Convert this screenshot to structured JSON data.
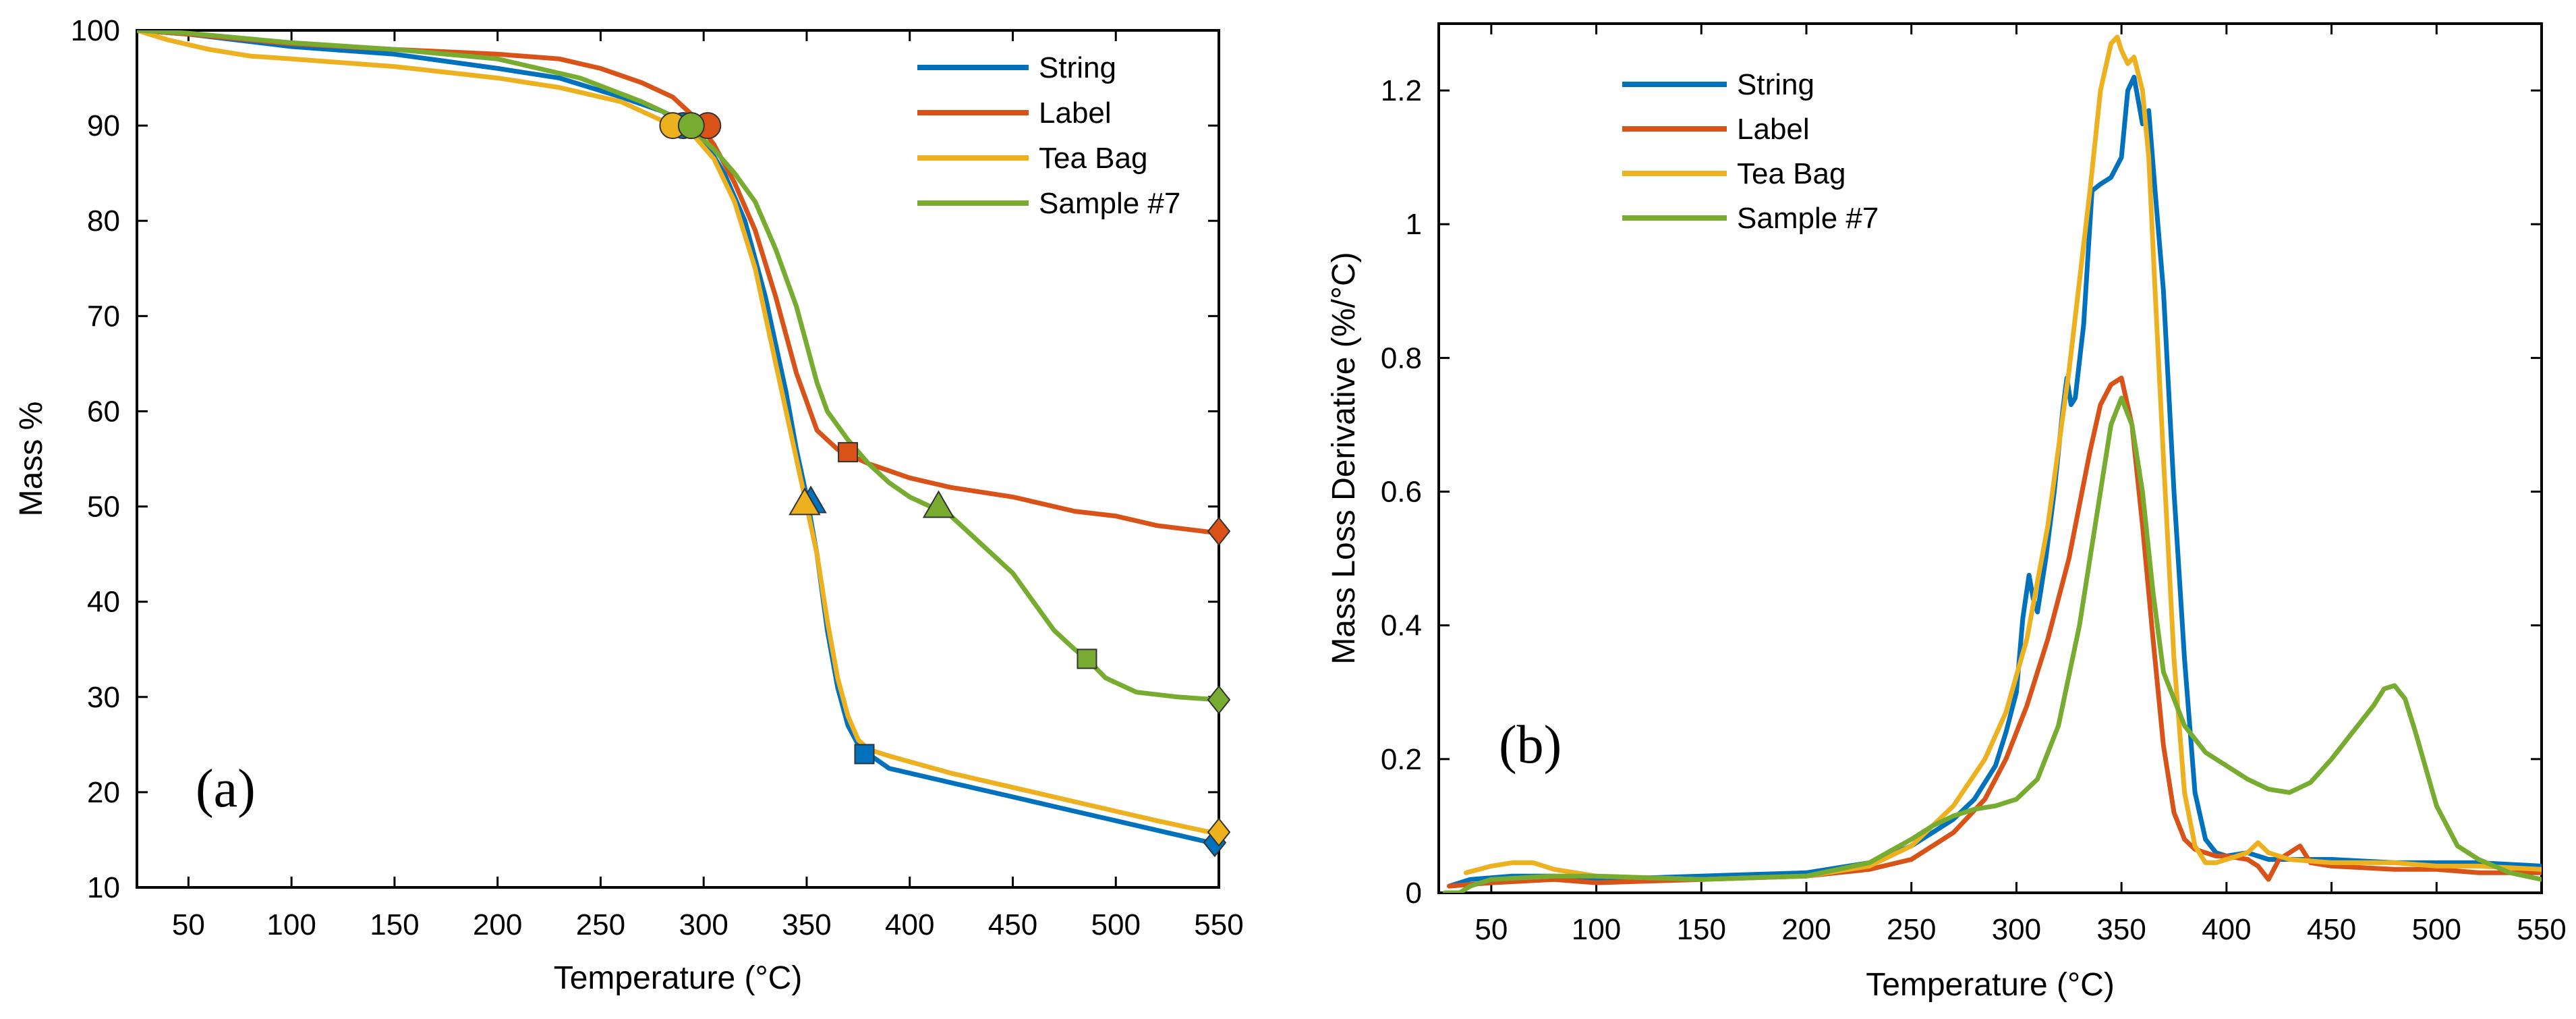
{
  "chart_data": [
    {
      "id": "a",
      "type": "line",
      "panel_label": "(a)",
      "xlabel": "Temperature (°C)",
      "ylabel": "Mass %",
      "xlim": [
        25,
        550
      ],
      "ylim": [
        10,
        100
      ],
      "xticks": [
        50,
        100,
        150,
        200,
        250,
        300,
        350,
        400,
        450,
        500,
        550
      ],
      "yticks": [
        10,
        20,
        30,
        40,
        50,
        60,
        70,
        80,
        90,
        100
      ],
      "legend_position": "top-right",
      "series": [
        {
          "name": "String",
          "color": "#0072BD",
          "x": [
            25,
            50,
            100,
            150,
            200,
            230,
            260,
            280,
            290,
            300,
            310,
            320,
            330,
            340,
            345,
            350,
            355,
            360,
            365,
            370,
            375,
            380,
            390,
            400,
            420,
            450,
            480,
            500,
            520,
            550
          ],
          "y": [
            100,
            99.6,
            98.3,
            97.5,
            96,
            95,
            93,
            91.5,
            90,
            88.5,
            85,
            80,
            72,
            62,
            56,
            51,
            45,
            37,
            31,
            27,
            25,
            24,
            22.5,
            22,
            21,
            19.5,
            18,
            17,
            16,
            14.5
          ],
          "markers": [
            {
              "shape": "circle",
              "x": 290,
              "y": 90
            },
            {
              "shape": "triangle",
              "x": 352,
              "y": 50.5
            },
            {
              "shape": "square",
              "x": 378,
              "y": 24
            },
            {
              "shape": "diamond",
              "x": 548,
              "y": 14.7
            }
          ]
        },
        {
          "name": "Label",
          "color": "#D95319",
          "x": [
            25,
            50,
            100,
            150,
            200,
            230,
            250,
            270,
            285,
            295,
            305,
            315,
            325,
            335,
            345,
            355,
            365,
            370,
            380,
            400,
            420,
            450,
            480,
            500,
            520,
            550
          ],
          "y": [
            100,
            99.6,
            98.6,
            98,
            97.5,
            97,
            96,
            94.5,
            93,
            91,
            88,
            84,
            79,
            72,
            64,
            58,
            56,
            55.5,
            54.5,
            53,
            52,
            51,
            49.5,
            49,
            48,
            47.2
          ],
          "markers": [
            {
              "shape": "circle",
              "x": 302,
              "y": 90
            },
            {
              "shape": "square",
              "x": 370,
              "y": 55.7
            },
            {
              "shape": "diamond",
              "x": 550,
              "y": 47.4
            }
          ]
        },
        {
          "name": "Tea Bag",
          "color": "#EDB120",
          "x": [
            25,
            40,
            60,
            80,
            100,
            150,
            200,
            230,
            260,
            275,
            285,
            295,
            305,
            315,
            325,
            335,
            345,
            350,
            355,
            360,
            365,
            370,
            375,
            380,
            390,
            400,
            420,
            450,
            480,
            500,
            520,
            550
          ],
          "y": [
            100,
            99,
            98,
            97.3,
            97,
            96.2,
            95,
            94,
            92.5,
            91,
            90,
            89,
            86.5,
            82,
            75,
            65,
            55,
            50,
            45,
            38,
            32,
            28,
            25.5,
            24.5,
            23.8,
            23.2,
            22,
            20.5,
            19,
            18,
            17,
            15.6
          ],
          "markers": [
            {
              "shape": "circle",
              "x": 285,
              "y": 90
            },
            {
              "shape": "triangle",
              "x": 349,
              "y": 50.3
            },
            {
              "shape": "diamond",
              "x": 550,
              "y": 15.8
            }
          ]
        },
        {
          "name": "Sample #7",
          "color": "#77AC30",
          "x": [
            25,
            50,
            100,
            150,
            200,
            240,
            270,
            285,
            295,
            305,
            315,
            325,
            335,
            345,
            350,
            355,
            360,
            370,
            380,
            390,
            400,
            410,
            420,
            435,
            450,
            460,
            470,
            480,
            486,
            495,
            510,
            530,
            550
          ],
          "y": [
            100,
            99.7,
            98.7,
            98,
            97,
            95,
            92.5,
            91,
            89.5,
            87.5,
            85,
            82,
            77,
            71,
            67,
            63,
            60,
            57,
            54.5,
            52.5,
            51,
            50,
            49,
            46,
            43,
            40,
            37,
            35,
            34,
            32,
            30.5,
            30,
            29.7
          ],
          "markers": [
            {
              "shape": "circle",
              "x": 294,
              "y": 90
            },
            {
              "shape": "triangle",
              "x": 414,
              "y": 50
            },
            {
              "shape": "square",
              "x": 486,
              "y": 34
            },
            {
              "shape": "diamond",
              "x": 550,
              "y": 29.7
            }
          ]
        }
      ]
    },
    {
      "id": "b",
      "type": "line",
      "panel_label": "(b)",
      "xlabel": "Temperature (°C)",
      "ylabel": "Mass Loss Derivative (%/°C)",
      "xlim": [
        25,
        550
      ],
      "ylim": [
        0,
        1.3
      ],
      "xticks": [
        50,
        100,
        150,
        200,
        250,
        300,
        350,
        400,
        450,
        500,
        550
      ],
      "yticks": [
        0,
        0.2,
        0.4,
        0.6,
        0.8,
        1,
        1.2
      ],
      "ytick_labels": [
        "0",
        "0.2",
        "0.4",
        "0.6",
        "0.8",
        "1",
        "1.2"
      ],
      "legend_position": "top-left",
      "series": [
        {
          "name": "String",
          "color": "#0072BD",
          "x": [
            30,
            40,
            60,
            80,
            100,
            150,
            200,
            230,
            250,
            270,
            280,
            290,
            295,
            300,
            303,
            306,
            308,
            310,
            314,
            318,
            322,
            324,
            326,
            328,
            332,
            336,
            340,
            345,
            350,
            353,
            356,
            360,
            363,
            366,
            370,
            375,
            380,
            385,
            390,
            395,
            400,
            410,
            420,
            430,
            450,
            480,
            500,
            520,
            550
          ],
          "y": [
            0.01,
            0.02,
            0.025,
            0.025,
            0.02,
            0.025,
            0.03,
            0.045,
            0.07,
            0.11,
            0.14,
            0.19,
            0.24,
            0.3,
            0.41,
            0.475,
            0.44,
            0.42,
            0.5,
            0.6,
            0.72,
            0.77,
            0.73,
            0.74,
            0.85,
            1.05,
            1.06,
            1.07,
            1.1,
            1.2,
            1.22,
            1.15,
            1.17,
            1.05,
            0.9,
            0.6,
            0.35,
            0.15,
            0.08,
            0.06,
            0.055,
            0.06,
            0.05,
            0.05,
            0.05,
            0.045,
            0.045,
            0.045,
            0.04
          ]
        },
        {
          "name": "Label",
          "color": "#D95319",
          "x": [
            30,
            50,
            80,
            100,
            150,
            200,
            230,
            250,
            270,
            285,
            295,
            305,
            315,
            325,
            335,
            340,
            345,
            350,
            355,
            360,
            365,
            370,
            375,
            380,
            385,
            390,
            395,
            400,
            410,
            415,
            420,
            425,
            430,
            435,
            440,
            450,
            480,
            500,
            520,
            550
          ],
          "y": [
            0.01,
            0.015,
            0.02,
            0.015,
            0.02,
            0.025,
            0.035,
            0.05,
            0.09,
            0.14,
            0.2,
            0.28,
            0.38,
            0.5,
            0.66,
            0.73,
            0.76,
            0.77,
            0.7,
            0.55,
            0.38,
            0.22,
            0.12,
            0.08,
            0.065,
            0.06,
            0.055,
            0.055,
            0.05,
            0.04,
            0.02,
            0.05,
            0.06,
            0.07,
            0.045,
            0.04,
            0.035,
            0.035,
            0.03,
            0.03
          ]
        },
        {
          "name": "Tea Bag",
          "color": "#EDB120",
          "x": [
            38,
            50,
            60,
            70,
            80,
            100,
            150,
            200,
            230,
            250,
            270,
            285,
            295,
            305,
            315,
            325,
            335,
            340,
            345,
            348,
            350,
            353,
            356,
            360,
            363,
            366,
            370,
            375,
            380,
            385,
            390,
            395,
            400,
            410,
            415,
            420,
            430,
            450,
            480,
            500,
            520,
            550
          ],
          "y": [
            0.03,
            0.04,
            0.045,
            0.045,
            0.035,
            0.025,
            0.02,
            0.025,
            0.04,
            0.07,
            0.13,
            0.2,
            0.27,
            0.38,
            0.55,
            0.78,
            1.05,
            1.2,
            1.27,
            1.28,
            1.26,
            1.24,
            1.25,
            1.2,
            1.1,
            0.9,
            0.65,
            0.35,
            0.15,
            0.07,
            0.045,
            0.045,
            0.05,
            0.06,
            0.075,
            0.06,
            0.05,
            0.045,
            0.045,
            0.04,
            0.04,
            0.035
          ]
        },
        {
          "name": "Sample #7",
          "color": "#77AC30",
          "x": [
            28,
            35,
            40,
            50,
            80,
            100,
            150,
            200,
            230,
            250,
            260,
            270,
            280,
            290,
            300,
            310,
            320,
            330,
            340,
            345,
            350,
            355,
            360,
            365,
            370,
            380,
            390,
            400,
            410,
            420,
            430,
            440,
            450,
            460,
            470,
            475,
            480,
            485,
            490,
            500,
            510,
            520,
            535,
            550
          ],
          "y": [
            0,
            0,
            0.01,
            0.02,
            0.025,
            0.025,
            0.02,
            0.025,
            0.045,
            0.08,
            0.1,
            0.115,
            0.125,
            0.13,
            0.14,
            0.17,
            0.25,
            0.4,
            0.6,
            0.7,
            0.74,
            0.7,
            0.6,
            0.45,
            0.33,
            0.25,
            0.21,
            0.19,
            0.17,
            0.155,
            0.15,
            0.165,
            0.2,
            0.24,
            0.28,
            0.305,
            0.31,
            0.29,
            0.24,
            0.13,
            0.07,
            0.05,
            0.03,
            0.02
          ]
        }
      ]
    }
  ]
}
